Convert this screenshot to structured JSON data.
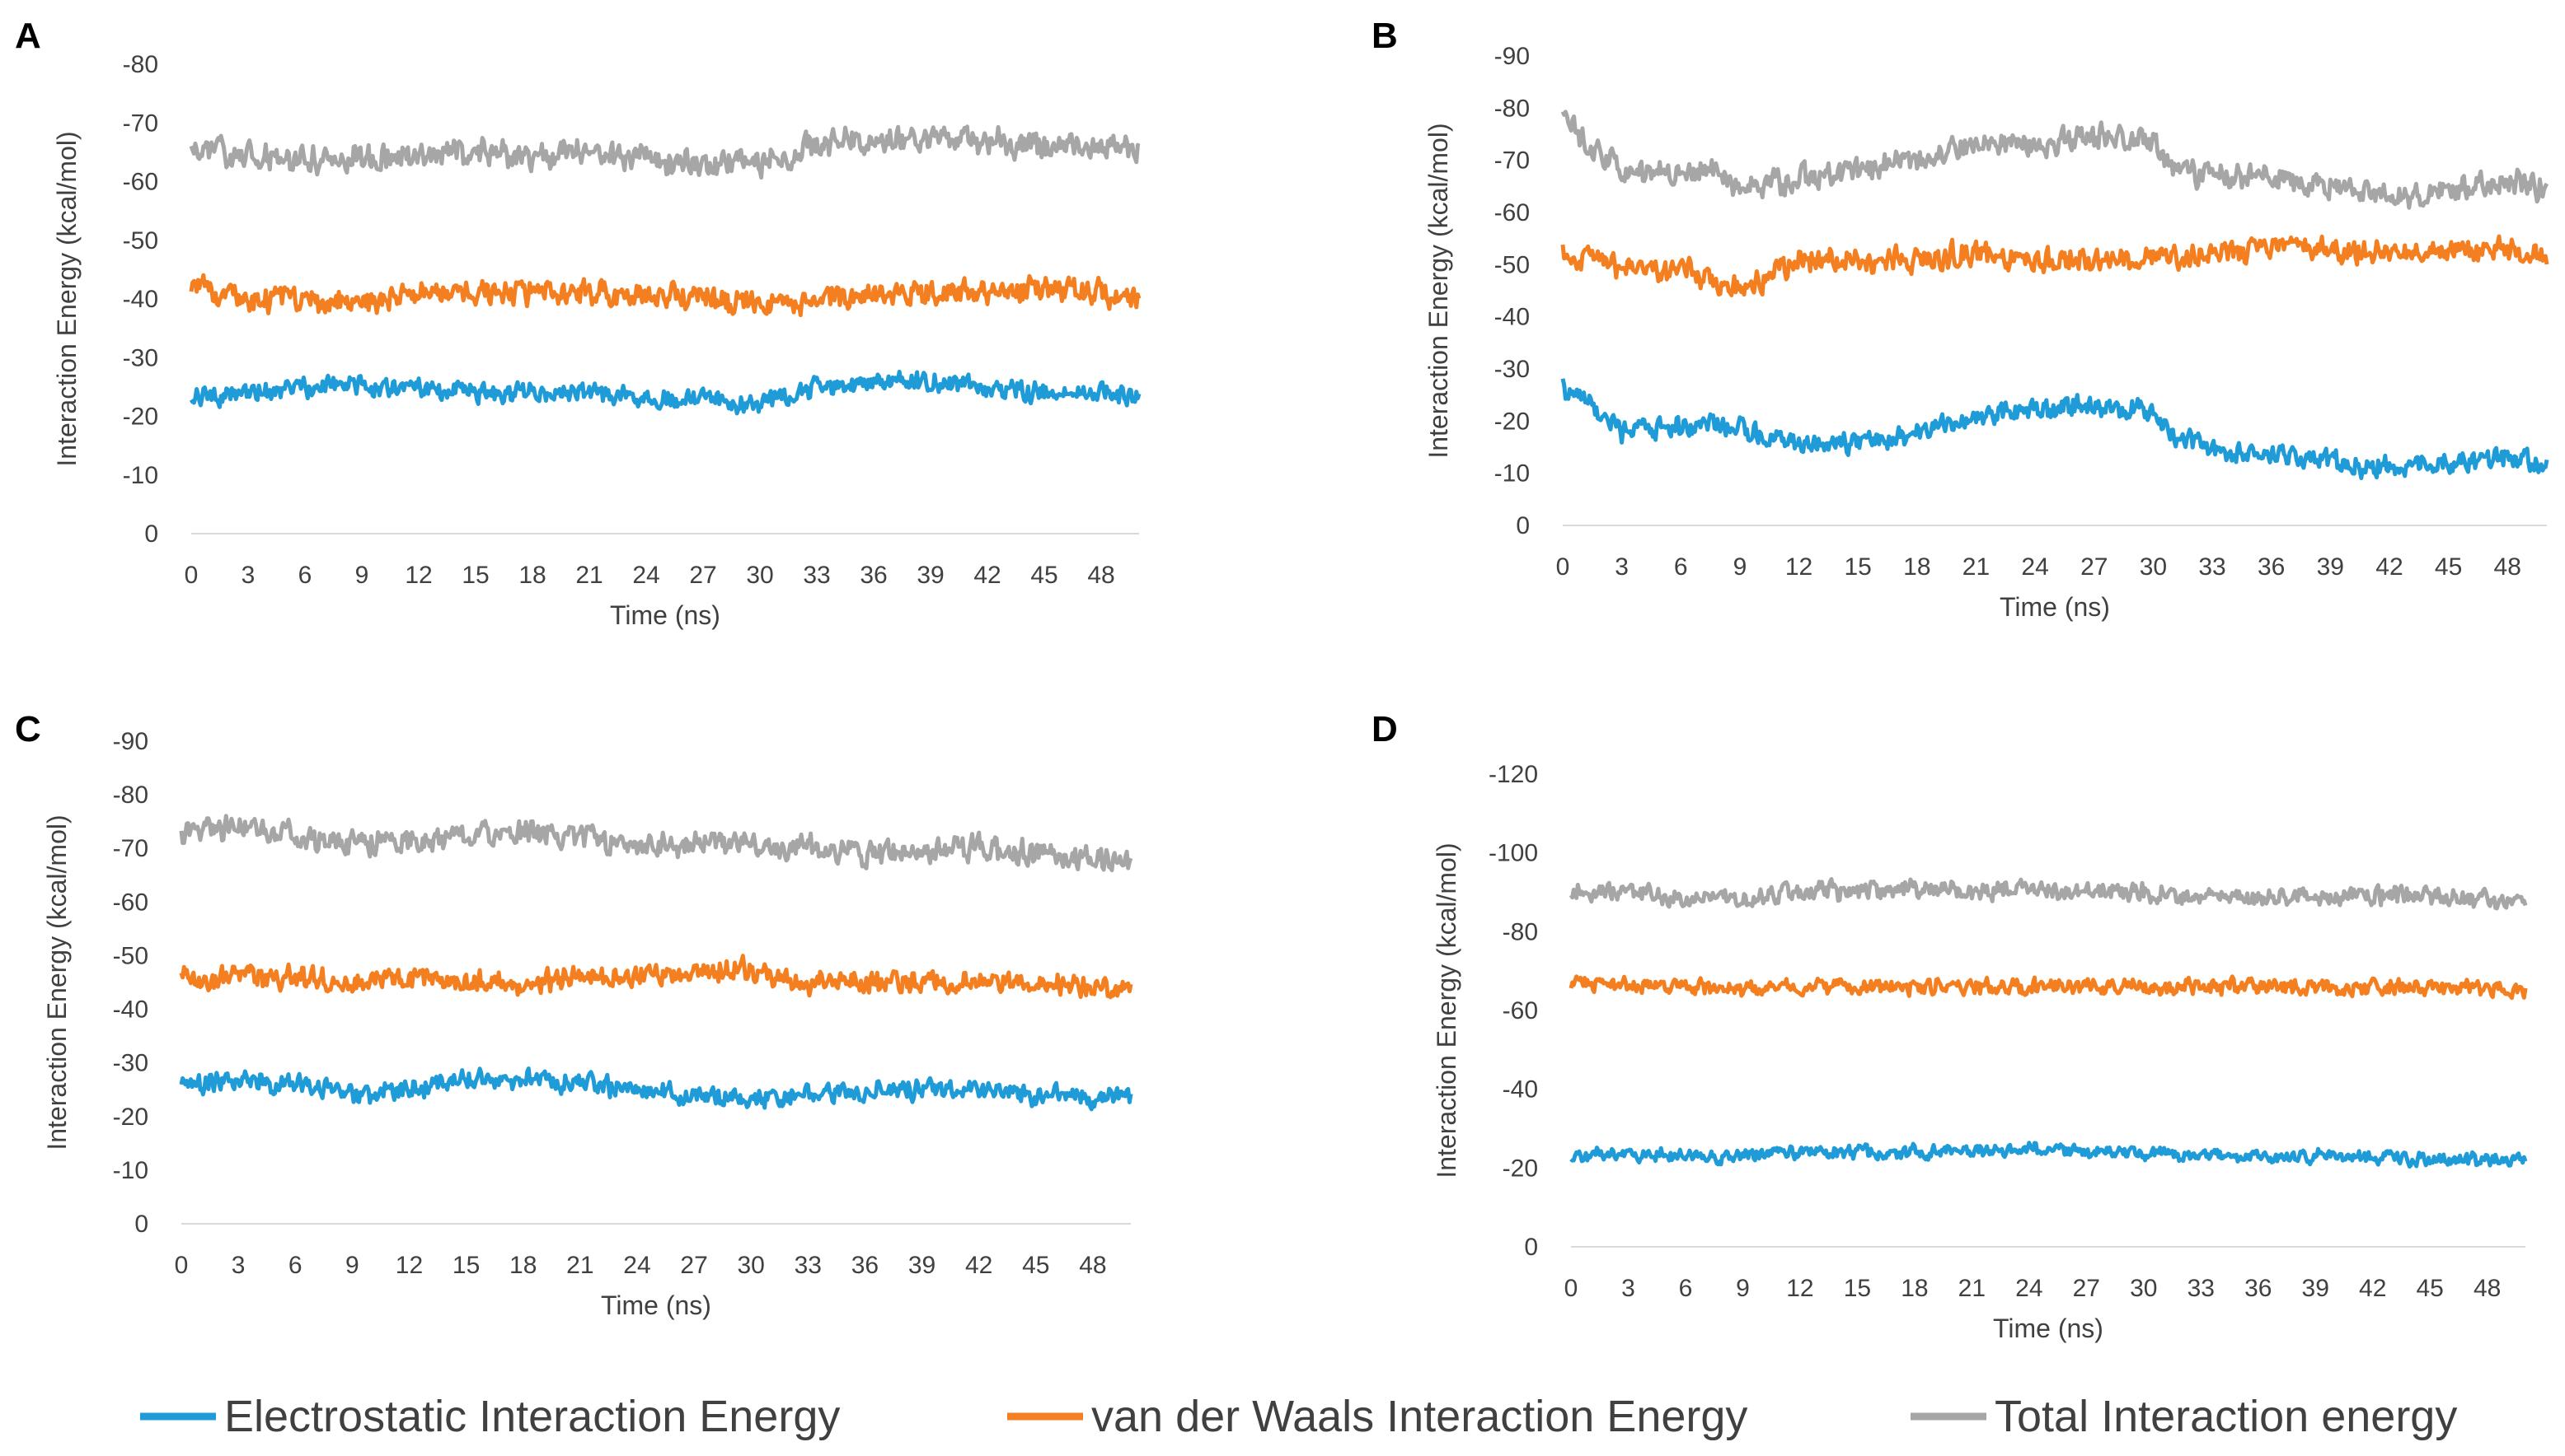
{
  "legend": {
    "placement": "bottom",
    "items": [
      {
        "name": "Electrostatic Interaction Energy",
        "color": "#1f9bd7"
      },
      {
        "name": "van der Waals Interaction Energy",
        "color": "#f47f20"
      },
      {
        "name": "Total Interaction energy",
        "color": "#a6a6a6"
      }
    ]
  },
  "chart_data": [
    {
      "panel": "A",
      "type": "line",
      "xlabel": "Time (ns)",
      "ylabel": "Interaction Energy (kcal/mol)",
      "xlim": [
        0,
        50
      ],
      "ylim": [
        0,
        -80
      ],
      "xticks": [
        0,
        3,
        6,
        9,
        12,
        15,
        18,
        21,
        24,
        27,
        30,
        33,
        36,
        39,
        42,
        45,
        48
      ],
      "yticks": [
        0,
        -10,
        -20,
        -30,
        -40,
        -50,
        -60,
        -70,
        -80
      ],
      "grid": false,
      "series": [
        {
          "name": "Electrostatic Interaction Energy",
          "color": "#1f9bd7",
          "x": [
            0,
            3,
            6,
            9,
            12,
            15,
            18,
            21,
            24,
            27,
            30,
            33,
            36,
            39,
            42,
            45,
            48,
            50
          ],
          "y": [
            -23,
            -24,
            -25,
            -25,
            -25,
            -24,
            -24,
            -24,
            -23,
            -23,
            -22,
            -25,
            -26,
            -26,
            -25,
            -24,
            -24,
            -23
          ],
          "noise": 2.0
        },
        {
          "name": "van der Waals Interaction Energy",
          "color": "#f47f20",
          "x": [
            0,
            3,
            6,
            9,
            12,
            15,
            18,
            21,
            24,
            27,
            30,
            33,
            36,
            39,
            42,
            45,
            48,
            50
          ],
          "y": [
            -42,
            -40,
            -40,
            -39,
            -41,
            -41,
            -41,
            -41,
            -41,
            -40,
            -39,
            -40,
            -41,
            -41,
            -41,
            -42,
            -41,
            -40
          ],
          "noise": 2.5
        },
        {
          "name": "Total Interaction energy",
          "color": "#a6a6a6",
          "x": [
            0,
            3,
            6,
            9,
            12,
            15,
            18,
            21,
            24,
            27,
            30,
            33,
            36,
            39,
            42,
            45,
            48,
            50
          ],
          "y": [
            -66,
            -64,
            -64,
            -64,
            -65,
            -65,
            -64,
            -65,
            -64,
            -63,
            -63,
            -66,
            -67,
            -67,
            -67,
            -66,
            -66,
            -65
          ],
          "noise": 2.8
        }
      ]
    },
    {
      "panel": "B",
      "type": "line",
      "xlabel": "Time (ns)",
      "ylabel": "Interaction Energy (kcal/mol)",
      "xlim": [
        0,
        50
      ],
      "ylim": [
        0,
        -90
      ],
      "xticks": [
        0,
        3,
        6,
        9,
        12,
        15,
        18,
        21,
        24,
        27,
        30,
        33,
        36,
        39,
        42,
        45,
        48
      ],
      "yticks": [
        0,
        -10,
        -20,
        -30,
        -40,
        -50,
        -60,
        -70,
        -80,
        -90
      ],
      "grid": false,
      "series": [
        {
          "name": "Electrostatic Interaction Energy",
          "color": "#1f9bd7",
          "x": [
            0,
            1,
            3,
            6,
            8,
            9,
            12,
            15,
            18,
            21,
            24,
            27,
            30,
            31,
            33,
            36,
            39,
            42,
            45,
            48,
            50
          ],
          "y": [
            -26,
            -24,
            -18,
            -19,
            -20,
            -18,
            -16,
            -16,
            -18,
            -21,
            -22,
            -23,
            -22,
            -17,
            -15,
            -14,
            -12,
            -11,
            -12,
            -13,
            -12
          ],
          "noise": 2.5
        },
        {
          "name": "van der Waals Interaction Energy",
          "color": "#f47f20",
          "x": [
            0,
            3,
            6,
            9,
            12,
            15,
            18,
            21,
            24,
            27,
            30,
            33,
            36,
            39,
            42,
            45,
            48,
            50
          ],
          "y": [
            -52,
            -49,
            -49,
            -45,
            -51,
            -51,
            -51,
            -52,
            -51,
            -51,
            -51,
            -52,
            -53,
            -53,
            -52,
            -53,
            -53,
            -52
          ],
          "noise": 2.8
        },
        {
          "name": "Total Interaction energy",
          "color": "#a6a6a6",
          "x": [
            0,
            1,
            3,
            6,
            8,
            9,
            12,
            15,
            18,
            21,
            24,
            27,
            30,
            31,
            33,
            36,
            39,
            42,
            45,
            48,
            50
          ],
          "y": [
            -78,
            -74,
            -68,
            -68,
            -68,
            -64,
            -67,
            -68,
            -70,
            -74,
            -73,
            -74,
            -74,
            -68,
            -67,
            -67,
            -65,
            -63,
            -64,
            -66,
            -65
          ],
          "noise": 3.0
        }
      ]
    },
    {
      "panel": "C",
      "type": "line",
      "xlabel": "Time (ns)",
      "ylabel": "Interaction Energy (kcal/mol)",
      "xlim": [
        0,
        50
      ],
      "ylim": [
        0,
        -90
      ],
      "xticks": [
        0,
        3,
        6,
        9,
        12,
        15,
        18,
        21,
        24,
        27,
        30,
        33,
        36,
        39,
        42,
        45,
        48
      ],
      "yticks": [
        0,
        -10,
        -20,
        -30,
        -40,
        -50,
        -60,
        -70,
        -80,
        -90
      ],
      "grid": false,
      "series": [
        {
          "name": "Electrostatic Interaction Energy",
          "color": "#1f9bd7",
          "x": [
            0,
            3,
            6,
            9,
            12,
            15,
            18,
            21,
            24,
            27,
            30,
            33,
            36,
            39,
            42,
            45,
            48,
            50
          ],
          "y": [
            -26,
            -27,
            -26,
            -24,
            -25,
            -27,
            -27,
            -26,
            -25,
            -24,
            -23,
            -24,
            -25,
            -25,
            -25,
            -24,
            -23,
            -24
          ],
          "noise": 2.2
        },
        {
          "name": "van der Waals Interaction Energy",
          "color": "#f47f20",
          "x": [
            0,
            3,
            6,
            9,
            12,
            15,
            18,
            21,
            24,
            27,
            30,
            33,
            36,
            39,
            42,
            45,
            48,
            50
          ],
          "y": [
            -46,
            -46,
            -46,
            -45,
            -46,
            -45,
            -45,
            -46,
            -46,
            -47,
            -47,
            -45,
            -45,
            -45,
            -45,
            -45,
            -44,
            -43
          ],
          "noise": 2.6
        },
        {
          "name": "Total Interaction energy",
          "color": "#a6a6a6",
          "x": [
            0,
            3,
            6,
            9,
            12,
            15,
            18,
            21,
            24,
            27,
            30,
            33,
            36,
            39,
            42,
            45,
            48,
            50
          ],
          "y": [
            -73,
            -74,
            -72,
            -71,
            -71,
            -72,
            -73,
            -72,
            -70,
            -71,
            -71,
            -70,
            -69,
            -69,
            -70,
            -69,
            -68,
            -68
          ],
          "noise": 2.8
        }
      ]
    },
    {
      "panel": "D",
      "type": "line",
      "xlabel": "Time (ns)",
      "ylabel": "Interaction Energy (kcal/mol)",
      "xlim": [
        0,
        50
      ],
      "ylim": [
        0,
        -120
      ],
      "xticks": [
        0,
        3,
        6,
        9,
        12,
        15,
        18,
        21,
        24,
        27,
        30,
        33,
        36,
        39,
        42,
        45,
        48
      ],
      "yticks": [
        0,
        -20,
        -40,
        -60,
        -80,
        -100,
        -120
      ],
      "grid": false,
      "series": [
        {
          "name": "Electrostatic Interaction Energy",
          "color": "#1f9bd7",
          "x": [
            0,
            3,
            6,
            9,
            12,
            15,
            18,
            21,
            24,
            27,
            30,
            33,
            36,
            39,
            42,
            45,
            48,
            50
          ],
          "y": [
            -23,
            -24,
            -23,
            -23,
            -24,
            -24,
            -24,
            -24,
            -25,
            -24,
            -24,
            -23,
            -23,
            -23,
            -23,
            -22,
            -22,
            -22
          ],
          "noise": 2.0
        },
        {
          "name": "van der Waals Interaction Energy",
          "color": "#f47f20",
          "x": [
            0,
            3,
            6,
            9,
            12,
            15,
            18,
            21,
            24,
            27,
            30,
            33,
            36,
            39,
            42,
            45,
            48,
            50
          ],
          "y": [
            -67,
            -67,
            -66,
            -65,
            -66,
            -66,
            -66,
            -66,
            -66,
            -66,
            -66,
            -66,
            -66,
            -66,
            -66,
            -66,
            -66,
            -65
          ],
          "noise": 2.4
        },
        {
          "name": "Total Interaction energy",
          "color": "#a6a6a6",
          "x": [
            0,
            3,
            6,
            9,
            12,
            15,
            18,
            21,
            24,
            27,
            30,
            33,
            36,
            39,
            42,
            45,
            48,
            50
          ],
          "y": [
            -90,
            -91,
            -88,
            -88,
            -90,
            -90,
            -91,
            -90,
            -91,
            -90,
            -90,
            -89,
            -89,
            -89,
            -89,
            -89,
            -88,
            -88
          ],
          "noise": 2.8
        }
      ]
    }
  ]
}
